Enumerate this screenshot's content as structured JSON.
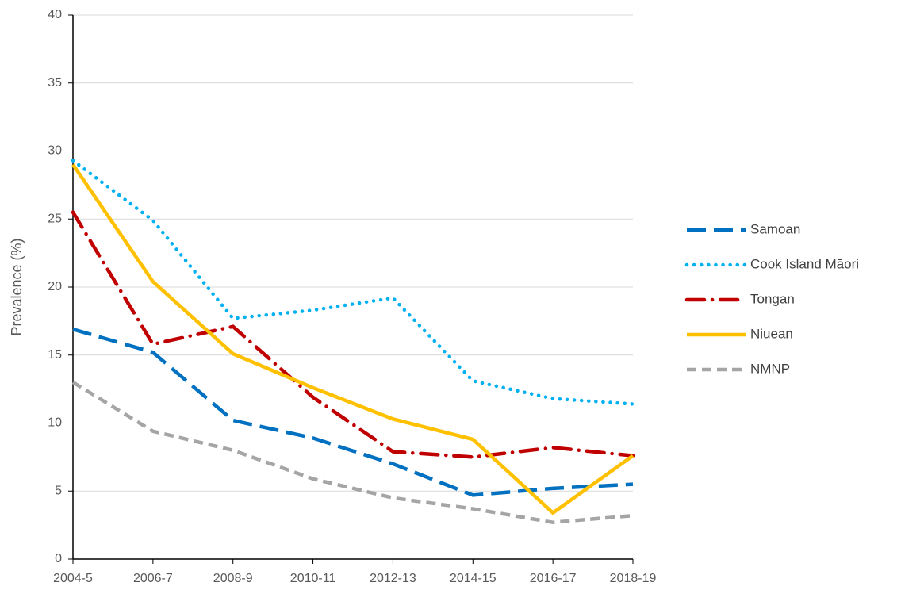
{
  "chart_data": {
    "type": "line",
    "y_label": "Prevalence (%)",
    "categories": [
      "2004-5",
      "2006-7",
      "2008-9",
      "2010-11",
      "2012-13",
      "2014-15",
      "2016-17",
      "2018-19"
    ],
    "series": [
      {
        "name": "Samoan",
        "color": "#0070c0",
        "dash": "long-dash",
        "values": [
          16.9,
          15.2,
          10.2,
          8.9,
          7.0,
          4.7,
          5.2,
          5.5
        ]
      },
      {
        "name": "Cook Island Māori",
        "color": "#00b0f0",
        "dash": "dot",
        "values": [
          29.3,
          24.9,
          17.7,
          18.3,
          19.2,
          13.1,
          11.8,
          11.4
        ]
      },
      {
        "name": "Tongan",
        "color": "#c00000",
        "dash": "dash-dot",
        "values": [
          25.5,
          15.8,
          17.1,
          11.9,
          7.9,
          7.5,
          8.2,
          7.6
        ]
      },
      {
        "name": "Niuean",
        "color": "#ffc000",
        "dash": "solid",
        "values": [
          29.0,
          20.4,
          15.1,
          12.6,
          10.3,
          8.8,
          3.4,
          7.6
        ]
      },
      {
        "name": "NMNP",
        "color": "#a5a5a5",
        "dash": "dash",
        "values": [
          13.0,
          9.4,
          8.0,
          5.9,
          4.5,
          3.7,
          2.7,
          3.2
        ]
      }
    ],
    "ylim": [
      0,
      40
    ],
    "yticks": [
      0,
      5,
      10,
      15,
      20,
      25,
      30,
      35,
      40
    ],
    "grid": true,
    "legend": "right"
  }
}
